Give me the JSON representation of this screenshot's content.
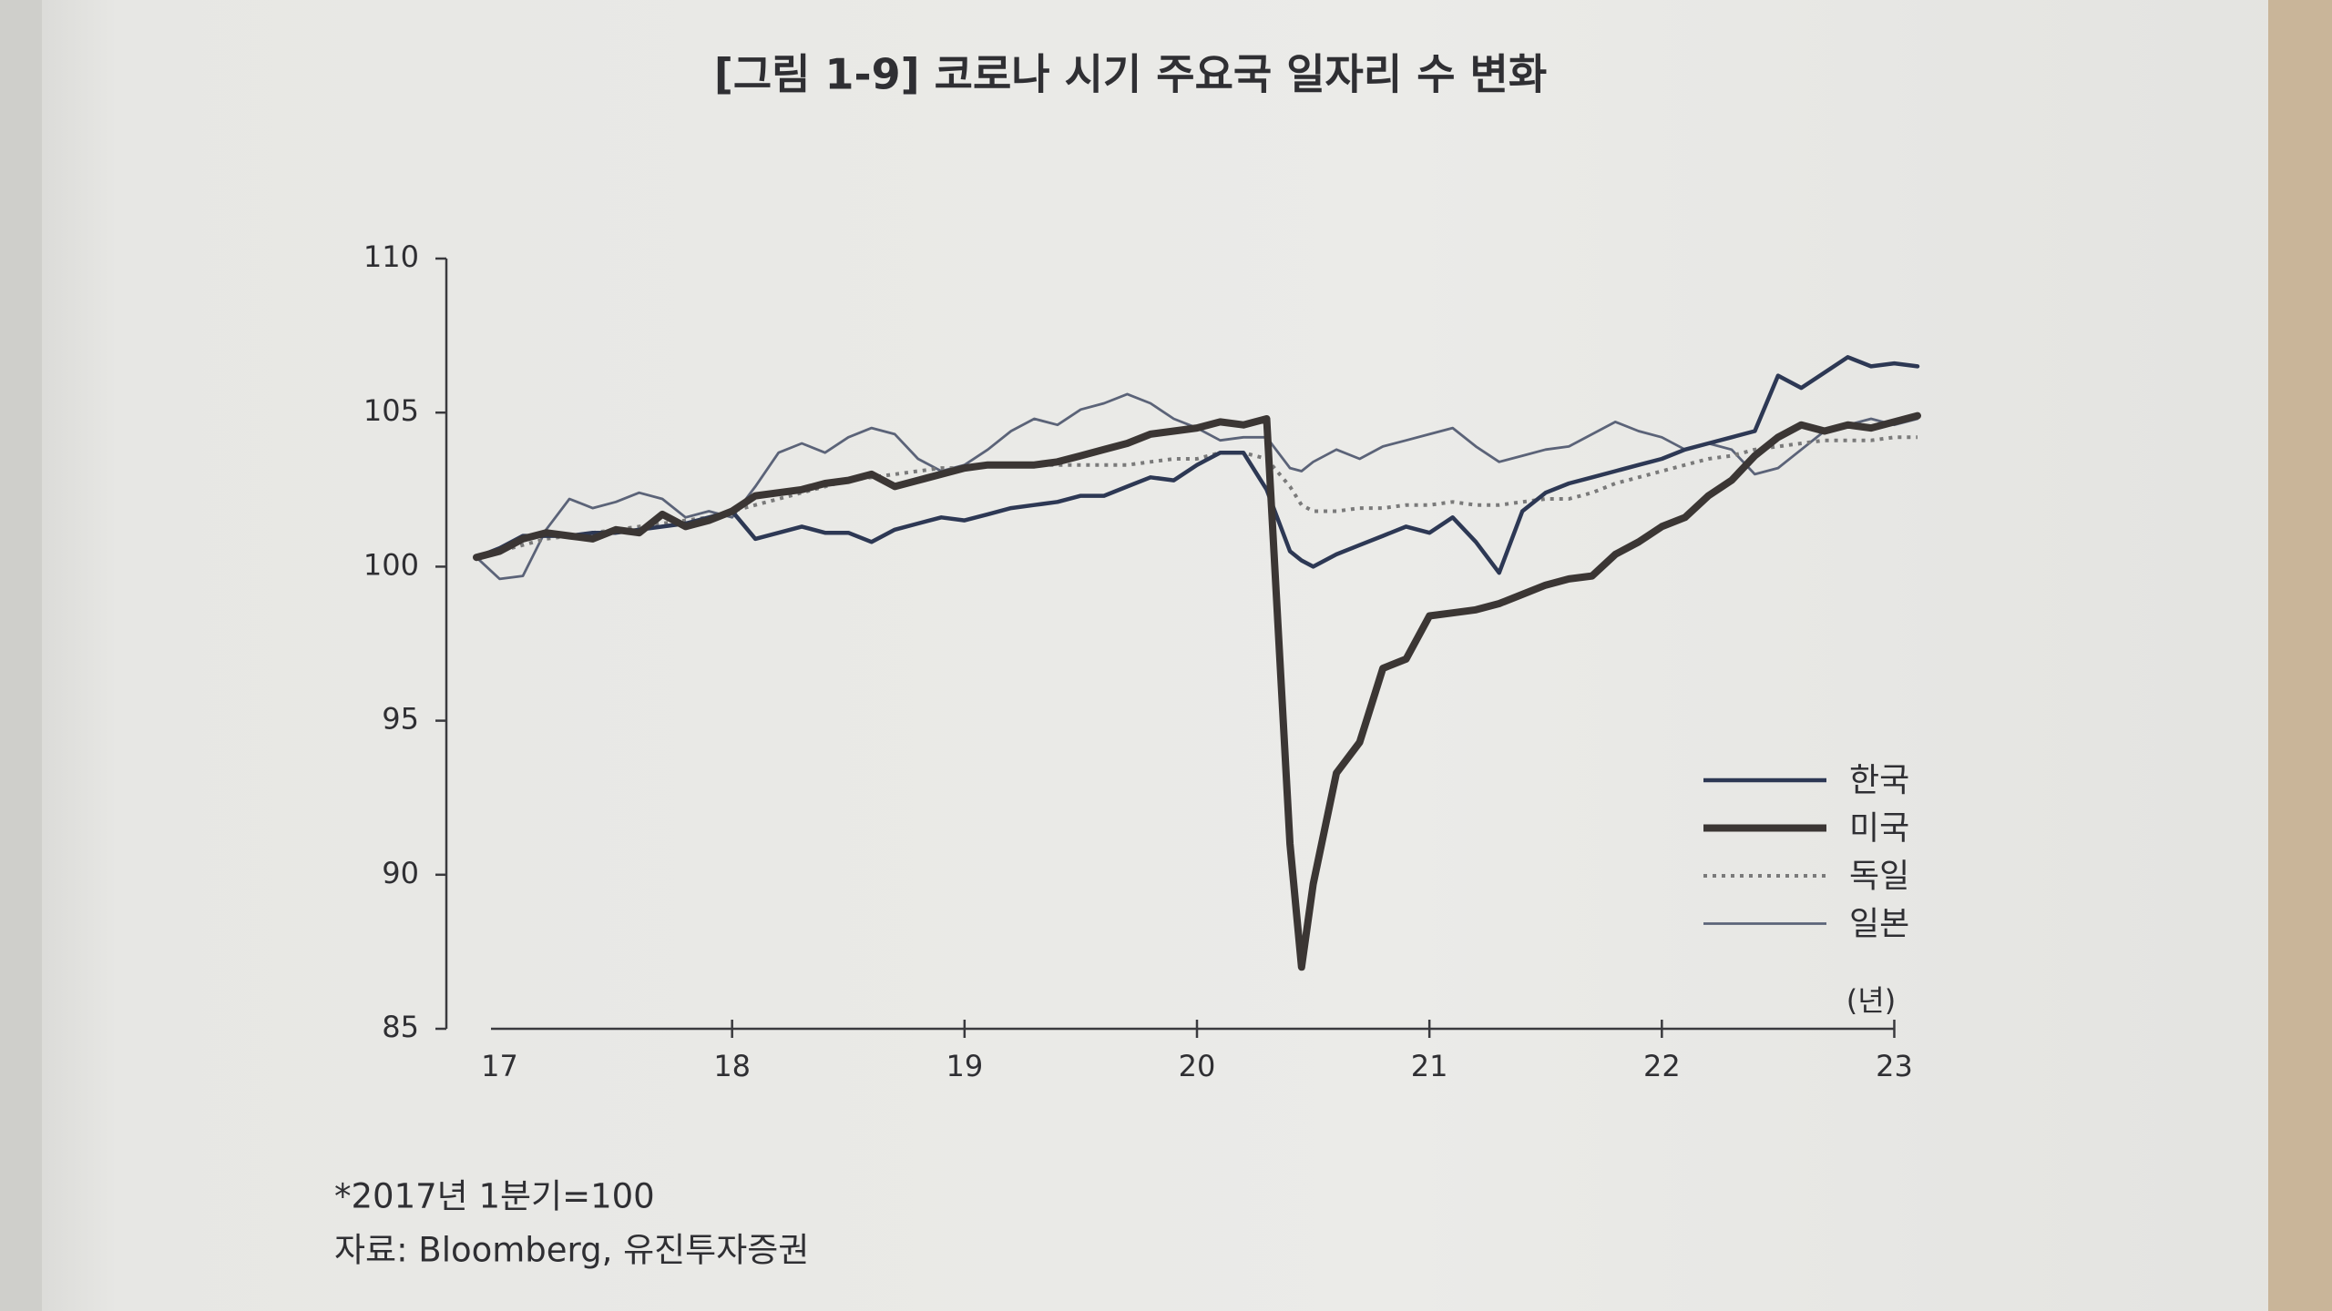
{
  "chart_data": {
    "type": "line",
    "title": "[그림 1-9] 코로나 시기 주요국 일자리 수 변화",
    "xlabel": "(년)",
    "notes": [
      "*2017년 1분기=100",
      "자료: Bloomberg, 유진투자증권"
    ],
    "x": [
      2016.9,
      2017.0,
      2017.1,
      2017.2,
      2017.3,
      2017.4,
      2017.5,
      2017.6,
      2017.7,
      2017.8,
      2017.9,
      2018.0,
      2018.1,
      2018.2,
      2018.3,
      2018.4,
      2018.5,
      2018.6,
      2018.7,
      2018.8,
      2018.9,
      2019.0,
      2019.1,
      2019.2,
      2019.3,
      2019.4,
      2019.5,
      2019.6,
      2019.7,
      2019.8,
      2019.9,
      2020.0,
      2020.1,
      2020.2,
      2020.3,
      2020.4,
      2020.45,
      2020.5,
      2020.6,
      2020.7,
      2020.8,
      2020.9,
      2021.0,
      2021.1,
      2021.2,
      2021.3,
      2021.4,
      2021.5,
      2021.6,
      2021.7,
      2021.8,
      2021.9,
      2022.0,
      2022.1,
      2022.2,
      2022.3,
      2022.4,
      2022.5,
      2022.6,
      2022.7,
      2022.8,
      2022.9,
      2023.0,
      2023.1
    ],
    "series": [
      {
        "name": "한국",
        "color": "#2d3854",
        "width": 4.5,
        "dash": "none",
        "values": [
          100.3,
          100.6,
          101.0,
          101.0,
          101.0,
          101.1,
          101.1,
          101.2,
          101.3,
          101.4,
          101.6,
          101.8,
          100.9,
          101.1,
          101.3,
          101.1,
          101.1,
          100.8,
          101.2,
          101.4,
          101.6,
          101.5,
          101.7,
          101.9,
          102.0,
          102.1,
          102.3,
          102.3,
          102.6,
          102.9,
          102.8,
          103.3,
          103.7,
          103.7,
          102.5,
          100.5,
          100.2,
          100.0,
          100.4,
          100.7,
          101.0,
          101.3,
          101.1,
          101.6,
          100.8,
          99.8,
          101.8,
          102.4,
          102.7,
          102.9,
          103.1,
          103.3,
          103.5,
          103.8,
          104.0,
          104.2,
          104.4,
          106.2,
          105.8,
          106.3,
          106.8,
          106.5,
          106.6,
          106.5
        ]
      },
      {
        "name": "미국",
        "color": "#3b3634",
        "width": 8,
        "dash": "none",
        "values": [
          100.3,
          100.5,
          100.9,
          101.1,
          101.0,
          100.9,
          101.2,
          101.1,
          101.7,
          101.3,
          101.5,
          101.8,
          102.3,
          102.4,
          102.5,
          102.7,
          102.8,
          103.0,
          102.6,
          102.8,
          103.0,
          103.2,
          103.3,
          103.3,
          103.3,
          103.4,
          103.6,
          103.8,
          104.0,
          104.3,
          104.4,
          104.5,
          104.7,
          104.6,
          104.8,
          91.0,
          87.0,
          89.7,
          93.3,
          94.3,
          96.7,
          97.0,
          98.4,
          98.5,
          98.6,
          98.8,
          99.1,
          99.4,
          99.6,
          99.7,
          100.4,
          100.8,
          101.3,
          101.6,
          102.3,
          102.8,
          103.6,
          104.2,
          104.6,
          104.4,
          104.6,
          104.5,
          104.7,
          104.9
        ]
      },
      {
        "name": "독일",
        "color": "#7a7a7a",
        "width": 4,
        "dash": "4 6",
        "values": [
          100.3,
          100.5,
          100.7,
          100.9,
          101.0,
          101.1,
          101.2,
          101.3,
          101.4,
          101.5,
          101.6,
          101.8,
          102.0,
          102.2,
          102.4,
          102.6,
          102.8,
          102.9,
          103.0,
          103.1,
          103.2,
          103.2,
          103.3,
          103.3,
          103.3,
          103.3,
          103.3,
          103.3,
          103.3,
          103.4,
          103.5,
          103.5,
          103.7,
          103.7,
          103.5,
          102.6,
          102.0,
          101.8,
          101.8,
          101.9,
          101.9,
          102.0,
          102.0,
          102.1,
          102.0,
          102.0,
          102.1,
          102.2,
          102.2,
          102.4,
          102.7,
          102.9,
          103.1,
          103.3,
          103.5,
          103.6,
          103.8,
          103.9,
          104.0,
          104.1,
          104.1,
          104.1,
          104.2,
          104.2
        ]
      },
      {
        "name": "일본",
        "color": "#5b6378",
        "width": 2.8,
        "dash": "none",
        "values": [
          100.3,
          99.6,
          99.7,
          101.2,
          102.2,
          101.9,
          102.1,
          102.4,
          102.2,
          101.6,
          101.8,
          101.6,
          102.6,
          103.7,
          104.0,
          103.7,
          104.2,
          104.5,
          104.3,
          103.5,
          103.1,
          103.3,
          103.8,
          104.4,
          104.8,
          104.6,
          105.1,
          105.3,
          105.6,
          105.3,
          104.8,
          104.5,
          104.1,
          104.2,
          104.2,
          103.2,
          103.1,
          103.4,
          103.8,
          103.5,
          103.9,
          104.1,
          104.3,
          104.5,
          103.9,
          103.4,
          103.6,
          103.8,
          103.9,
          104.3,
          104.7,
          104.4,
          104.2,
          103.8,
          104.0,
          103.8,
          103.0,
          103.2,
          103.8,
          104.4,
          104.6,
          104.8,
          104.6,
          104.8
        ]
      }
    ],
    "xlim": [
      2016.9,
      2023.1
    ],
    "xticks": [
      {
        "value": 2017,
        "label": "17"
      },
      {
        "value": 2018,
        "label": "18"
      },
      {
        "value": 2019,
        "label": "19"
      },
      {
        "value": 2020,
        "label": "20"
      },
      {
        "value": 2021,
        "label": "21"
      },
      {
        "value": 2022,
        "label": "22"
      },
      {
        "value": 2023,
        "label": "23"
      }
    ],
    "ylim": [
      85,
      110
    ],
    "yticks": [
      85,
      90,
      95,
      100,
      105,
      110
    ],
    "grid": false,
    "legend": "lower right"
  }
}
